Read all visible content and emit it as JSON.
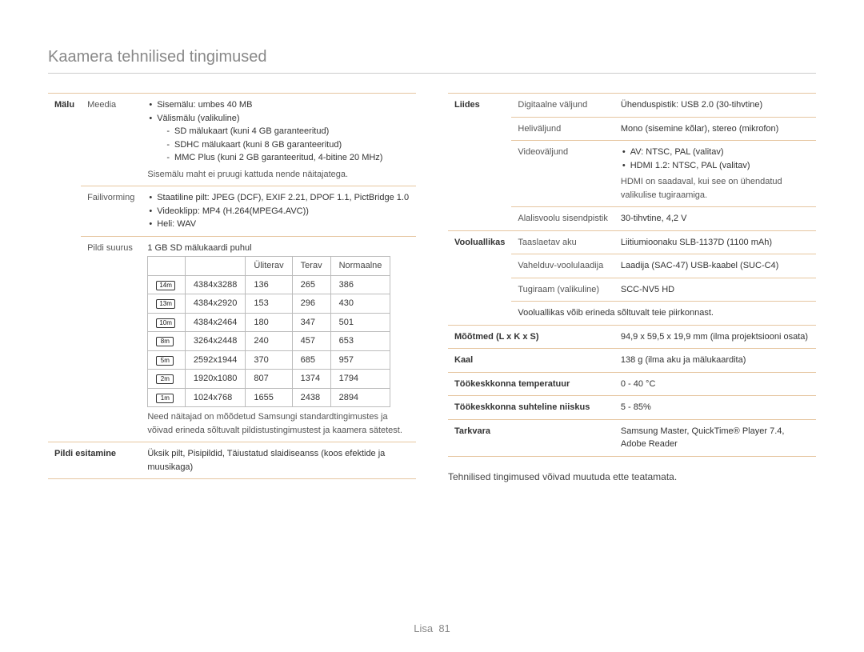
{
  "page_title": "Kaamera tehnilised tingimused",
  "footer": {
    "label": "Lisa",
    "page": "81"
  },
  "left": {
    "malu": {
      "label": "Mälu",
      "media": {
        "label": "Meedia",
        "b1": "Sisemälu: umbes 40 MB",
        "b2": "Välismälu (valikuline)",
        "b2a": "SD mälukaart (kuni 4 GB garanteeritud)",
        "b2b": "SDHC mälukaart (kuni 8 GB garanteeritud)",
        "b2c": "MMC Plus (kuni 2 GB garanteeritud, 4-bitine 20 MHz)",
        "note": "Sisemälu maht ei pruugi kattuda nende näitajatega."
      },
      "failivorming": {
        "label": "Failivorming",
        "b1": "Staatiline pilt: JPEG (DCF), EXIF 2.21, DPOF 1.1, PictBridge 1.0",
        "b2": "Videoklipp: MP4 (H.264(MPEG4.AVC))",
        "b3": "Heli: WAV"
      },
      "pildisuurus": {
        "label": "Pildi suurus",
        "caption": "1 GB SD mälukaardi puhul",
        "headers": {
          "c2": "Üliterav",
          "c3": "Terav",
          "c4": "Normaalne"
        },
        "icons": {
          "r0": "14m",
          "r1": "13m",
          "r2": "10m",
          "r3": "8m",
          "r4": "5m",
          "r5": "2m",
          "r6": "1m"
        },
        "rows": [
          {
            "res": "4384x3288",
            "a": "136",
            "b": "265",
            "c": "386"
          },
          {
            "res": "4384x2920",
            "a": "153",
            "b": "296",
            "c": "430"
          },
          {
            "res": "4384x2464",
            "a": "180",
            "b": "347",
            "c": "501"
          },
          {
            "res": "3264x2448",
            "a": "240",
            "b": "457",
            "c": "653"
          },
          {
            "res": "2592x1944",
            "a": "370",
            "b": "685",
            "c": "957"
          },
          {
            "res": "1920x1080",
            "a": "807",
            "b": "1374",
            "c": "1794"
          },
          {
            "res": "1024x768",
            "a": "1655",
            "b": "2438",
            "c": "2894"
          }
        ],
        "note": "Need näitajad on mõõdetud Samsungi standardtingimustes ja võivad erineda sõltuvalt pildistustingimustest ja kaamera sätetest."
      }
    },
    "pildi_esitamine": {
      "label": "Pildi esitamine",
      "value": "Üksik pilt, Pisipildid, Täiustatud slaidiseanss (koos efektide ja muusikaga)"
    }
  },
  "right": {
    "liides": {
      "label": "Liides",
      "digitaalne": {
        "label": "Digitaalne väljund",
        "value": "Ühenduspistik: USB 2.0 (30-tihvtine)"
      },
      "heli": {
        "label": "Heliväljund",
        "value": "Mono (sisemine kõlar), stereo (mikrofon)"
      },
      "video": {
        "label": "Videoväljund",
        "b1": "AV: NTSC, PAL (valitav)",
        "b2": "HDMI 1.2: NTSC, PAL (valitav)",
        "note": "HDMI on saadaval, kui see on ühendatud valikulise tugiraamiga."
      },
      "alalis": {
        "label": "Alalisvoolu sisendpistik",
        "value": "30-tihvtine, 4,2 V"
      }
    },
    "vooluallikas": {
      "label": "Vooluallikas",
      "aku": {
        "label": "Taaslaetav aku",
        "value": "Liitiumioonaku SLB-1137D (1100 mAh)"
      },
      "laadija": {
        "label": "Vahelduv-voolulaadija",
        "value": "Laadija (SAC-47) USB-kaabel (SUC-C4)"
      },
      "tugiraam": {
        "label": "Tugiraam (valikuline)",
        "value": "SCC-NV5 HD"
      },
      "note": "Vooluallikas võib erineda sõltuvalt teie piirkonnast."
    },
    "mootmed": {
      "label": "Mõõtmed (L x K x S)",
      "value": "94,9 x 59,5 x 19,9 mm (ilma projektsiooni osata)"
    },
    "kaal": {
      "label": "Kaal",
      "value": "138 g (ilma aku ja mälukaardita)"
    },
    "temp": {
      "label": "Töökeskkonna temperatuur",
      "value": "0 - 40 °C"
    },
    "niiskus": {
      "label": "Töökeskkonna suhteline niiskus",
      "value": "5 - 85%"
    },
    "tarkvara": {
      "label": "Tarkvara",
      "value": "Samsung Master, QuickTime® Player 7.4, Adobe Reader"
    },
    "footer_note": "Tehnilised tingimused võivad muutuda ette teatamata."
  }
}
